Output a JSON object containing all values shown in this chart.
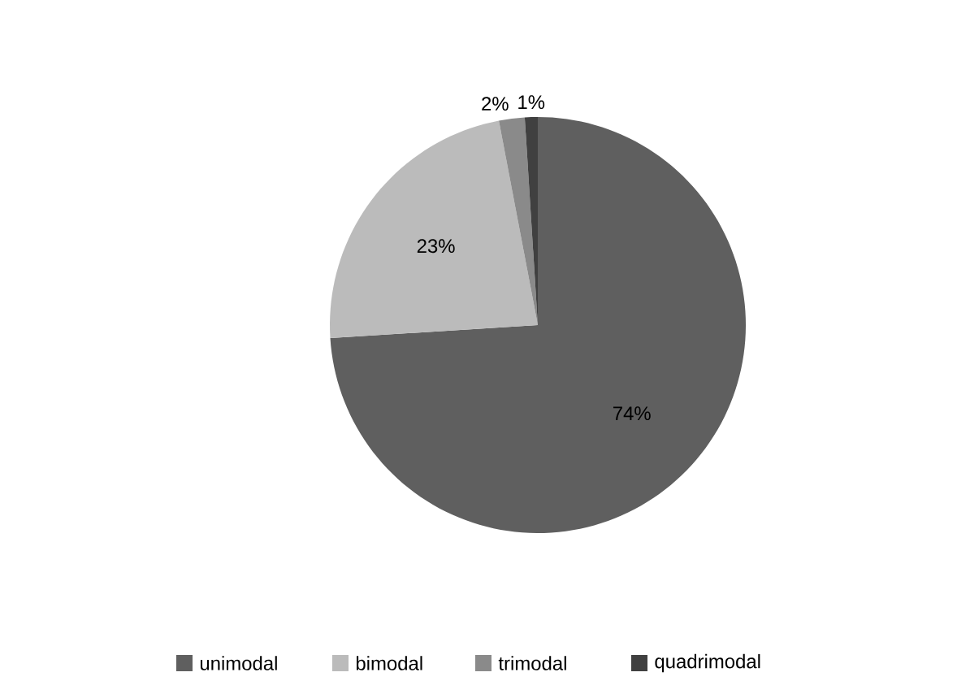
{
  "chart_data": {
    "type": "pie",
    "categories": [
      "unimodal",
      "bimodal",
      "trimodal",
      "quadrimodal"
    ],
    "values": [
      74,
      23,
      2,
      1
    ],
    "colors": [
      "#5f5f5f",
      "#bbbbbb",
      "#8a8a8a",
      "#404040"
    ],
    "data_labels": true,
    "value_labels": [
      "74%",
      "23%",
      "2%",
      "1%"
    ],
    "legend": "bottom"
  }
}
